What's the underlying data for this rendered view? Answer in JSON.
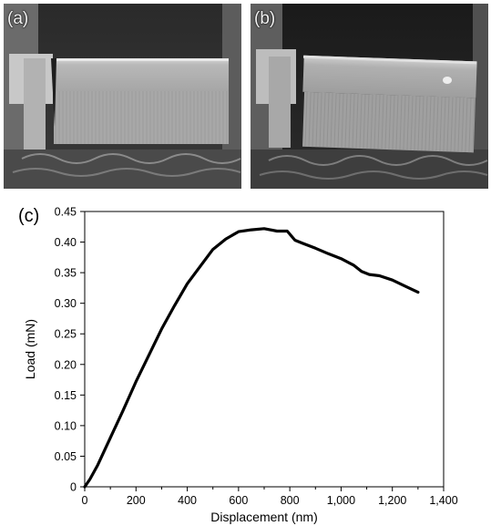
{
  "panels": [
    {
      "label": "(a)"
    },
    {
      "label": "(b)"
    }
  ],
  "chart_label": "(c)",
  "chart_data": {
    "type": "line",
    "xlabel": "Displacement (nm)",
    "ylabel": "Load (mN)",
    "xlim": [
      0,
      1400
    ],
    "ylim": [
      0,
      0.45
    ],
    "xticks": [
      0,
      200,
      400,
      600,
      800,
      1000,
      1200,
      1400
    ],
    "xtick_labels": [
      "0",
      "200",
      "400",
      "600",
      "800",
      "1,000",
      "1,200",
      "1,400"
    ],
    "yticks": [
      0,
      0.05,
      0.1,
      0.15,
      0.2,
      0.25,
      0.3,
      0.35,
      0.4,
      0.45
    ],
    "ytick_labels": [
      "0",
      "0.05",
      "0.10",
      "0.15",
      "0.20",
      "0.25",
      "0.30",
      "0.35",
      "0.40",
      "0.45"
    ],
    "grid": false,
    "series": [
      {
        "x": [
          0,
          20,
          50,
          100,
          150,
          200,
          250,
          300,
          350,
          400,
          450,
          500,
          550,
          600,
          650,
          700,
          750,
          790,
          820,
          850,
          900,
          950,
          1000,
          1050,
          1080,
          1110,
          1150,
          1200,
          1250,
          1300
        ],
        "y": [
          0,
          0.012,
          0.035,
          0.08,
          0.125,
          0.172,
          0.215,
          0.258,
          0.296,
          0.332,
          0.36,
          0.388,
          0.405,
          0.417,
          0.42,
          0.422,
          0.418,
          0.418,
          0.403,
          0.398,
          0.39,
          0.381,
          0.373,
          0.362,
          0.352,
          0.347,
          0.345,
          0.338,
          0.328,
          0.318
        ]
      }
    ]
  }
}
